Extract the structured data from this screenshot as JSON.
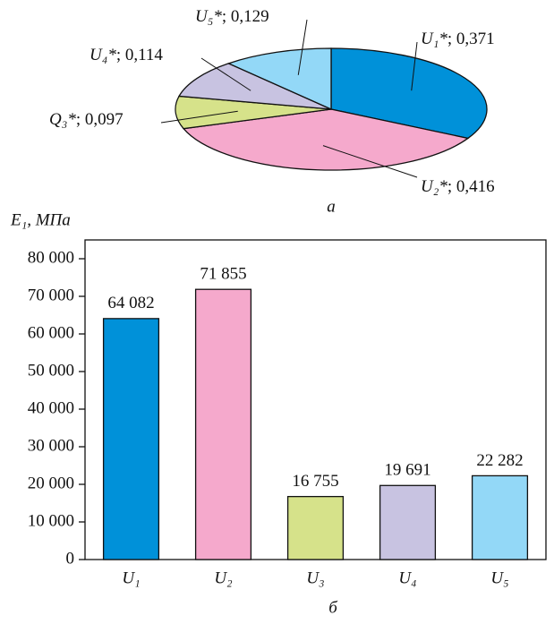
{
  "chart_data": [
    {
      "type": "pie",
      "caption": "а",
      "label_separator": "; ",
      "categories": [
        "U₁*",
        "U₂*",
        "Q₃*",
        "U₄*",
        "U₅*"
      ],
      "values": [
        0.371,
        0.416,
        0.097,
        0.114,
        0.129
      ],
      "value_labels": [
        "0,371",
        "0,416",
        "0,097",
        "0,114",
        "0,129"
      ],
      "colors": [
        "#0091d9",
        "#f5a9cc",
        "#d6e28a",
        "#c8c3e1",
        "#93d8f7"
      ]
    },
    {
      "type": "bar",
      "caption": "б",
      "y_label": "E₁, МПа",
      "categories": [
        "U₁",
        "U₂",
        "U₃",
        "U₄",
        "U₅"
      ],
      "values": [
        64082,
        71855,
        16755,
        19691,
        22282
      ],
      "value_labels": [
        "64 082",
        "71 855",
        "16 755",
        "19 691",
        "22 282"
      ],
      "colors": [
        "#0091d9",
        "#f5a9cc",
        "#d6e28a",
        "#c8c3e1",
        "#93d8f7"
      ],
      "ylim": [
        0,
        85000
      ],
      "yticks": [
        {
          "value": 0,
          "label": "0"
        },
        {
          "value": 10000,
          "label": "10 000"
        },
        {
          "value": 20000,
          "label": "20 000"
        },
        {
          "value": 30000,
          "label": "30 000"
        },
        {
          "value": 40000,
          "label": "40 000"
        },
        {
          "value": 50000,
          "label": "50 000"
        },
        {
          "value": 60000,
          "label": "60 000"
        },
        {
          "value": 70000,
          "label": "70 000"
        },
        {
          "value": 80000,
          "label": "80 000"
        }
      ]
    }
  ]
}
